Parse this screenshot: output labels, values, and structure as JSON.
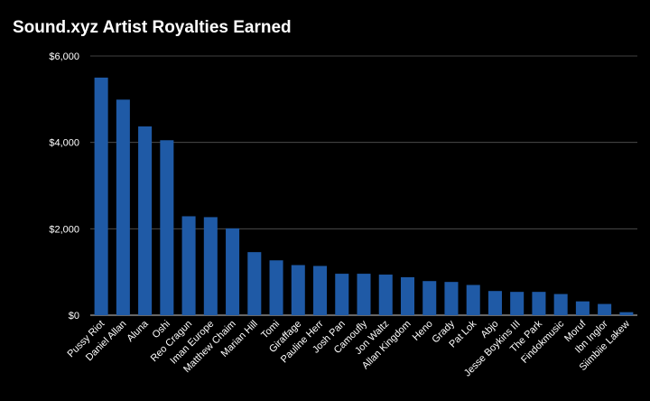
{
  "chart_data": {
    "type": "bar",
    "title": "Sound.xyz Artist Royalties Earned",
    "xlabel": "",
    "ylabel": "",
    "ylim": [
      0,
      6000
    ],
    "yticks": [
      0,
      2000,
      4000,
      6000
    ],
    "ytick_labels": [
      "$0",
      "$2,000",
      "$4,000",
      "$6,000"
    ],
    "grid": true,
    "legend": "none",
    "bar_color": "#1f5aa6",
    "background": "#000000",
    "categories": [
      "Pussy Riot",
      "Daniel Allan",
      "Aluna",
      "Oshi",
      "Reo Cragun",
      "Iman Europe",
      "Matthew Chaim",
      "Marian Hill",
      "Tomi",
      "Giraffage",
      "Pauline Herr",
      "Josh Pan",
      "Camoufly",
      "Jon Waltz",
      "Allan Kingdom",
      "Heno",
      "Grady",
      "Pat Lok",
      "Abjo",
      "Jesse Boykins III",
      "The Park",
      "Findokmusic",
      "Moruf",
      "Ibn Inglor",
      "Siimbiie Lakew"
    ],
    "values": [
      5500,
      4990,
      4370,
      4050,
      2290,
      2270,
      2010,
      1460,
      1270,
      1160,
      1140,
      960,
      960,
      940,
      880,
      790,
      770,
      700,
      560,
      540,
      540,
      490,
      320,
      260,
      70
    ]
  }
}
